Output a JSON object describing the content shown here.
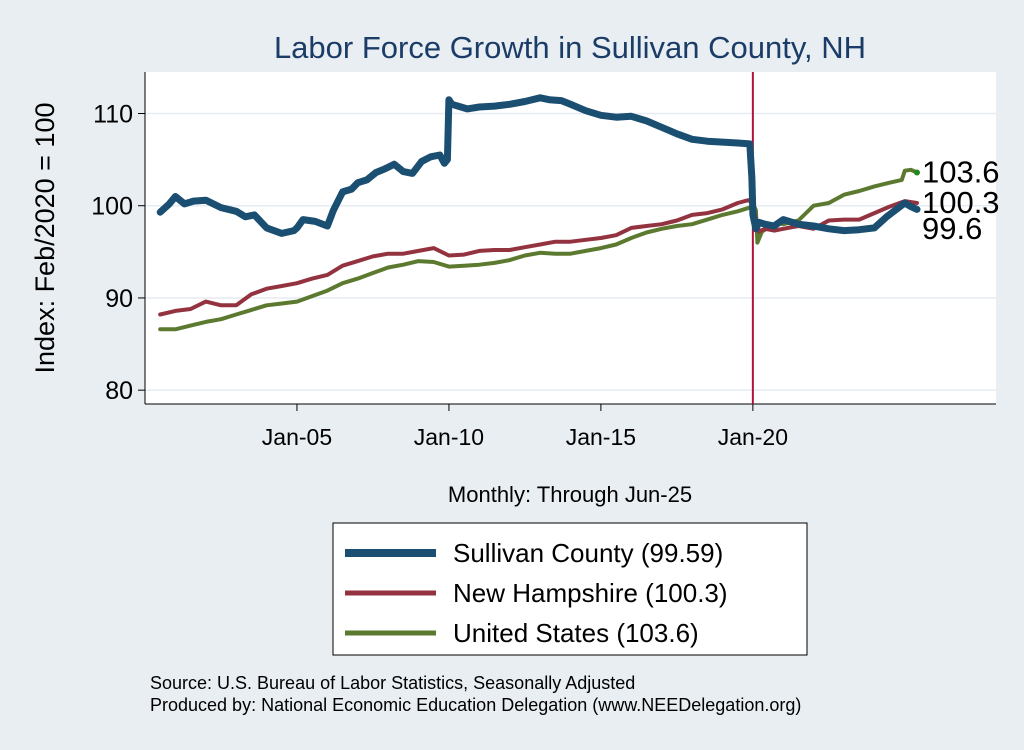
{
  "chart_data": {
    "type": "line",
    "title": "Labor Force Growth in Sullivan  County, NH",
    "ylabel": "Index: Feb/2020 = 100",
    "xlabel": "Monthly: Through Jun-25",
    "xlim": [
      2000.0,
      2028.0
    ],
    "ylim": [
      78.5,
      114.5
    ],
    "yticks": [
      80,
      90,
      100,
      110
    ],
    "xticks": [
      {
        "label": "Jan-05",
        "value": 2005.0
      },
      {
        "label": "Jan-10",
        "value": 2010.0
      },
      {
        "label": "Jan-15",
        "value": 2015.0
      },
      {
        "label": "Jan-20",
        "value": 2020.0
      }
    ],
    "reference_line": {
      "x": 2020.0,
      "color": "#b1123b"
    },
    "series": [
      {
        "name": "Sullivan  County",
        "legend": "Sullivan  County (99.59)",
        "color": "#1b4f72",
        "width": 7,
        "end_label": "99.6",
        "x": [
          2000.5,
          2000.8,
          2001.0,
          2001.3,
          2001.6,
          2002.0,
          2002.5,
          2003.0,
          2003.3,
          2003.6,
          2004.0,
          2004.5,
          2004.9,
          2005.0,
          2005.2,
          2005.6,
          2006.0,
          2006.2,
          2006.5,
          2006.8,
          2007.0,
          2007.3,
          2007.6,
          2007.9,
          2008.2,
          2008.5,
          2008.8,
          2009.1,
          2009.4,
          2009.7,
          2009.85,
          2009.95,
          2010.0,
          2010.1,
          2010.3,
          2010.6,
          2011.0,
          2011.5,
          2012.0,
          2012.5,
          2013.0,
          2013.3,
          2013.7,
          2014.0,
          2014.5,
          2015.0,
          2015.5,
          2016.0,
          2016.5,
          2017.0,
          2017.5,
          2018.0,
          2018.5,
          2019.0,
          2019.5,
          2019.9,
          2019.97,
          2020.0,
          2020.1,
          2020.2,
          2020.4,
          2020.7,
          2021.0,
          2021.5,
          2022.0,
          2022.5,
          2023.0,
          2023.5,
          2024.0,
          2024.4,
          2024.8,
          2025.0,
          2025.2,
          2025.4
        ],
        "y": [
          99.3,
          100.2,
          101.0,
          100.2,
          100.5,
          100.6,
          99.8,
          99.4,
          98.8,
          99.0,
          97.6,
          97.0,
          97.3,
          97.6,
          98.5,
          98.3,
          97.8,
          99.5,
          101.5,
          101.8,
          102.5,
          102.8,
          103.6,
          104.0,
          104.5,
          103.7,
          103.5,
          104.8,
          105.3,
          105.5,
          104.6,
          105.0,
          111.5,
          111.0,
          110.8,
          110.5,
          110.7,
          110.8,
          111.0,
          111.3,
          111.7,
          111.5,
          111.4,
          111.0,
          110.3,
          109.8,
          109.6,
          109.7,
          109.2,
          108.5,
          107.8,
          107.2,
          107.0,
          106.9,
          106.8,
          106.7,
          103.0,
          99.0,
          97.5,
          98.2,
          98.0,
          97.8,
          98.5,
          98.0,
          97.8,
          97.5,
          97.3,
          97.4,
          97.6,
          98.8,
          99.8,
          100.3,
          99.9,
          99.6
        ]
      },
      {
        "name": "New Hampshire",
        "legend": "New Hampshire (100.3)",
        "color": "#943340",
        "width": 4,
        "end_label": "100.3",
        "x": [
          2000.5,
          2001.0,
          2001.5,
          2002.0,
          2002.5,
          2003.0,
          2003.5,
          2004.0,
          2004.5,
          2005.0,
          2005.5,
          2006.0,
          2006.5,
          2007.0,
          2007.5,
          2008.0,
          2008.5,
          2009.0,
          2009.5,
          2010.0,
          2010.5,
          2011.0,
          2011.5,
          2012.0,
          2012.5,
          2013.0,
          2013.5,
          2014.0,
          2014.5,
          2015.0,
          2015.5,
          2016.0,
          2016.5,
          2017.0,
          2017.5,
          2018.0,
          2018.5,
          2019.0,
          2019.5,
          2019.85,
          2020.0,
          2020.1,
          2020.2,
          2020.4,
          2020.7,
          2021.0,
          2021.5,
          2022.0,
          2022.5,
          2023.0,
          2023.5,
          2024.0,
          2024.5,
          2025.0,
          2025.4
        ],
        "y": [
          88.2,
          88.6,
          88.8,
          89.6,
          89.2,
          89.2,
          90.4,
          91.0,
          91.3,
          91.6,
          92.1,
          92.5,
          93.5,
          94.0,
          94.5,
          94.8,
          94.8,
          95.1,
          95.4,
          94.6,
          94.7,
          95.1,
          95.2,
          95.2,
          95.5,
          95.8,
          96.1,
          96.1,
          96.3,
          96.5,
          96.8,
          97.6,
          97.8,
          98.0,
          98.4,
          99.0,
          99.2,
          99.6,
          100.3,
          100.6,
          100.3,
          98.5,
          97.2,
          97.5,
          97.3,
          97.5,
          97.8,
          97.5,
          98.4,
          98.5,
          98.5,
          99.2,
          99.9,
          100.5,
          100.3
        ]
      },
      {
        "name": "United States",
        "legend": "United States (103.6)",
        "color": "#5c7a2f",
        "width": 4,
        "end_label": "103.6",
        "x": [
          2000.5,
          2001.0,
          2001.5,
          2002.0,
          2002.5,
          2003.0,
          2003.5,
          2004.0,
          2004.5,
          2005.0,
          2005.5,
          2006.0,
          2006.5,
          2007.0,
          2007.5,
          2008.0,
          2008.5,
          2009.0,
          2009.5,
          2010.0,
          2010.5,
          2011.0,
          2011.5,
          2012.0,
          2012.5,
          2013.0,
          2013.5,
          2014.0,
          2014.5,
          2015.0,
          2015.5,
          2016.0,
          2016.5,
          2017.0,
          2017.5,
          2018.0,
          2018.5,
          2019.0,
          2019.5,
          2019.9,
          2020.0,
          2020.1,
          2020.15,
          2020.3,
          2020.5,
          2020.8,
          2021.0,
          2021.5,
          2022.0,
          2022.5,
          2023.0,
          2023.5,
          2024.0,
          2024.5,
          2024.9,
          2025.0,
          2025.2,
          2025.4
        ],
        "y": [
          86.6,
          86.6,
          87.0,
          87.4,
          87.7,
          88.2,
          88.7,
          89.2,
          89.4,
          89.6,
          90.2,
          90.8,
          91.6,
          92.1,
          92.7,
          93.3,
          93.6,
          94.0,
          93.9,
          93.4,
          93.5,
          93.6,
          93.8,
          94.1,
          94.6,
          94.9,
          94.8,
          94.8,
          95.1,
          95.4,
          95.8,
          96.5,
          97.1,
          97.5,
          97.8,
          98.0,
          98.5,
          99.0,
          99.4,
          99.8,
          100.2,
          99.5,
          96.0,
          97.2,
          97.6,
          98.2,
          98.0,
          98.4,
          100.0,
          100.3,
          101.2,
          101.6,
          102.1,
          102.5,
          102.8,
          103.8,
          103.9,
          103.6
        ]
      }
    ],
    "end_point": {
      "series": "United States",
      "x": 2025.4,
      "y": 103.6,
      "color": "#1e8a1e"
    },
    "legend_position": "bottom-center",
    "grid": "horizontal"
  },
  "footer": {
    "source": "Source: U.S. Bureau of Labor Statistics, Seasonally Adjusted",
    "produced": "Produced by: National Economic Education Delegation (www.NEEDelegation.org)"
  }
}
